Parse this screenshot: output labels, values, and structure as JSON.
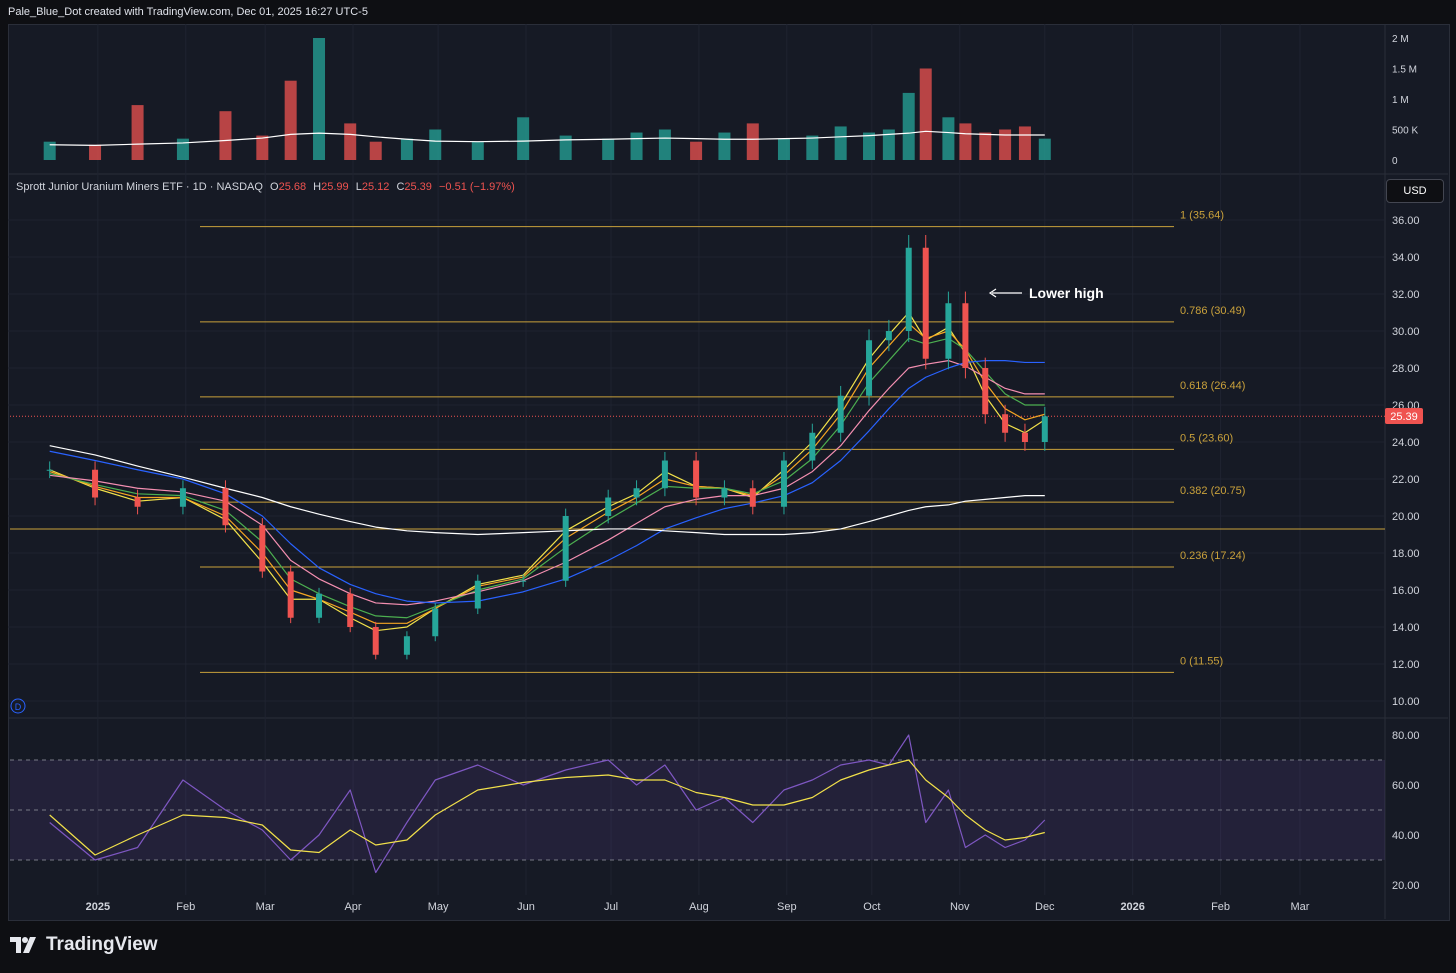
{
  "header": {
    "attribution": "Pale_Blue_Dot created with TradingView.com, Dec 01, 2025 16:27 UTC-5"
  },
  "legend": {
    "name": "Sprott Junior Uranium Miners ETF · 1D · NASDAQ",
    "o_label": "O",
    "o_value": "25.68",
    "h_label": "H",
    "h_value": "25.99",
    "l_label": "L",
    "l_value": "25.12",
    "c_label": "C",
    "c_value": "25.39",
    "change": "−0.51 (−1.97%)"
  },
  "currency_button": "USD",
  "price_badge": "25.39",
  "d_marker": "D",
  "annotation": "Lower high",
  "footer": {
    "brand": "TradingView"
  },
  "colors": {
    "up": "#26a69a",
    "down": "#ef5350",
    "fib": "#c9a13b",
    "ema_yellow": "#f2e14a",
    "ema_orange": "#f5a623",
    "ema_green": "#4caf50",
    "ema_pink": "#f48fb1",
    "ema_blue": "#2962ff",
    "sma_white": "#ffffff",
    "rsi": "#7e57c2"
  },
  "chart_data": [
    {
      "type": "line",
      "panel": "price",
      "title": "Sprott Junior Uranium Miners ETF · 1D · NASDAQ",
      "ylim": [
        10,
        37
      ],
      "y_ticks": [
        "36.00",
        "34.00",
        "32.00",
        "30.00",
        "28.00",
        "26.00",
        "24.00",
        "22.00",
        "20.00",
        "18.00",
        "16.00",
        "14.00",
        "12.00",
        "10.00"
      ],
      "x_ticks": [
        "2025",
        "Feb",
        "Mar",
        "Apr",
        "May",
        "Jun",
        "Jul",
        "Aug",
        "Sep",
        "Oct",
        "Nov",
        "Dec",
        "2026",
        "Feb",
        "Mar"
      ],
      "ohlc_last": {
        "open": 25.68,
        "high": 25.99,
        "low": 25.12,
        "close": 25.39,
        "change": -0.51,
        "change_pct": -1.97
      },
      "close_series": {
        "x": [
          "2024-12-15",
          "2024-12-31",
          "2025-01-15",
          "2025-01-31",
          "2025-02-15",
          "2025-02-28",
          "2025-03-10",
          "2025-03-20",
          "2025-03-31",
          "2025-04-09",
          "2025-04-20",
          "2025-04-30",
          "2025-05-15",
          "2025-05-31",
          "2025-06-15",
          "2025-06-30",
          "2025-07-10",
          "2025-07-20",
          "2025-07-31",
          "2025-08-10",
          "2025-08-20",
          "2025-08-31",
          "2025-09-10",
          "2025-09-20",
          "2025-09-30",
          "2025-10-07",
          "2025-10-14",
          "2025-10-20",
          "2025-10-28",
          "2025-11-03",
          "2025-11-10",
          "2025-11-17",
          "2025-11-24",
          "2025-12-01"
        ],
        "values": [
          22.5,
          21.0,
          20.5,
          21.5,
          19.5,
          17.0,
          14.5,
          15.8,
          14.0,
          12.5,
          13.5,
          15.0,
          16.5,
          16.5,
          20.0,
          21.0,
          21.5,
          23.0,
          21.0,
          21.5,
          20.5,
          23.0,
          24.5,
          26.5,
          29.5,
          30.0,
          34.5,
          28.5,
          31.5,
          28.0,
          25.5,
          24.5,
          24.0,
          25.39
        ]
      },
      "series": [
        {
          "name": "EMA (yellow)",
          "color": "#f2e14a",
          "values": [
            22.5,
            21.5,
            20.8,
            21.0,
            19.8,
            17.5,
            15.5,
            15.5,
            14.5,
            13.8,
            14.0,
            15.0,
            16.3,
            16.8,
            19.2,
            20.5,
            21.2,
            22.4,
            21.6,
            21.5,
            21.0,
            22.5,
            24.0,
            26.0,
            28.5,
            29.8,
            31.0,
            29.5,
            30.2,
            28.8,
            26.5,
            25.0,
            24.5,
            25.2
          ]
        },
        {
          "name": "EMA (orange)",
          "color": "#f5a623",
          "values": [
            22.4,
            21.6,
            21.0,
            21.0,
            20.0,
            18.0,
            16.0,
            15.5,
            14.8,
            14.2,
            14.2,
            15.0,
            16.2,
            16.7,
            18.8,
            20.2,
            21.0,
            22.0,
            21.6,
            21.5,
            21.1,
            22.2,
            23.6,
            25.5,
            28.0,
            29.2,
            30.4,
            29.6,
            30.0,
            29.0,
            27.2,
            25.8,
            25.2,
            25.5
          ]
        },
        {
          "name": "EMA (green)",
          "color": "#4caf50",
          "values": [
            22.3,
            21.7,
            21.2,
            21.1,
            20.3,
            18.6,
            16.6,
            15.8,
            15.1,
            14.6,
            14.5,
            15.1,
            16.0,
            16.6,
            18.3,
            19.8,
            20.7,
            21.6,
            21.5,
            21.5,
            21.2,
            21.9,
            23.1,
            24.9,
            27.2,
            28.4,
            29.6,
            29.3,
            29.6,
            29.0,
            27.8,
            26.6,
            26.0,
            26.0
          ]
        },
        {
          "name": "EMA (pink)",
          "color": "#f48fb1",
          "values": [
            22.2,
            21.9,
            21.5,
            21.3,
            20.8,
            19.5,
            17.6,
            16.6,
            15.8,
            15.3,
            15.2,
            15.4,
            15.9,
            16.5,
            17.5,
            18.7,
            19.6,
            20.5,
            20.9,
            21.1,
            21.1,
            21.5,
            22.4,
            23.8,
            25.7,
            26.9,
            28.0,
            28.2,
            28.4,
            28.1,
            27.5,
            26.9,
            26.6,
            26.6
          ]
        },
        {
          "name": "EMA (blue)",
          "color": "#2962ff",
          "values": [
            23.5,
            23.0,
            22.5,
            22.0,
            21.2,
            20.0,
            18.5,
            17.2,
            16.3,
            15.8,
            15.4,
            15.3,
            15.4,
            15.9,
            16.6,
            17.6,
            18.4,
            19.3,
            19.9,
            20.4,
            20.7,
            21.1,
            21.8,
            23.0,
            24.6,
            25.8,
            26.9,
            27.5,
            28.0,
            28.3,
            28.4,
            28.4,
            28.3,
            28.3
          ]
        },
        {
          "name": "SMA (white)",
          "color": "#ffffff",
          "values": [
            23.8,
            23.3,
            22.7,
            22.1,
            21.5,
            21.0,
            20.5,
            20.1,
            19.7,
            19.4,
            19.2,
            19.1,
            19.0,
            19.1,
            19.2,
            19.3,
            19.3,
            19.2,
            19.1,
            19.0,
            19.0,
            19.0,
            19.1,
            19.3,
            19.7,
            20.0,
            20.3,
            20.5,
            20.6,
            20.8,
            20.9,
            21.0,
            21.1,
            21.1
          ]
        }
      ],
      "fibonacci": [
        {
          "label": "1 (35.64)",
          "value": 35.64
        },
        {
          "label": "0.786 (30.49)",
          "value": 30.49
        },
        {
          "label": "0.618 (26.44)",
          "value": 26.44
        },
        {
          "label": "0.5 (23.60)",
          "value": 23.6
        },
        {
          "label": "0.382 (20.75)",
          "value": 20.75
        },
        {
          "label": "0.236 (17.24)",
          "value": 17.24
        },
        {
          "label": "0 (11.55)",
          "value": 11.55
        }
      ],
      "horizontal_line": 19.3,
      "annotations": [
        {
          "text": "Lower high",
          "x": "2025-10-31",
          "y": 32.0
        }
      ]
    },
    {
      "type": "bar",
      "panel": "volume",
      "y_ticks": [
        "2 M",
        "1.5 M",
        "1 M",
        "500 K",
        "0"
      ],
      "ylim": [
        0,
        2100000
      ],
      "x": [
        "2024-12-15",
        "2024-12-31",
        "2025-01-15",
        "2025-01-31",
        "2025-02-15",
        "2025-02-28",
        "2025-03-10",
        "2025-03-20",
        "2025-03-31",
        "2025-04-09",
        "2025-04-20",
        "2025-04-30",
        "2025-05-15",
        "2025-05-31",
        "2025-06-15",
        "2025-06-30",
        "2025-07-10",
        "2025-07-20",
        "2025-07-31",
        "2025-08-10",
        "2025-08-20",
        "2025-08-31",
        "2025-09-10",
        "2025-09-20",
        "2025-09-30",
        "2025-10-07",
        "2025-10-14",
        "2025-10-20",
        "2025-10-28",
        "2025-11-03",
        "2025-11-10",
        "2025-11-17",
        "2025-11-24",
        "2025-12-01"
      ],
      "values": [
        300000,
        250000,
        900000,
        350000,
        800000,
        400000,
        1300000,
        2000000,
        600000,
        300000,
        350000,
        500000,
        300000,
        700000,
        400000,
        350000,
        450000,
        500000,
        300000,
        450000,
        600000,
        350000,
        400000,
        550000,
        450000,
        500000,
        1100000,
        1500000,
        700000,
        600000,
        450000,
        500000,
        550000,
        350000
      ],
      "average_line": [
        250000,
        240000,
        260000,
        280000,
        320000,
        360000,
        420000,
        440000,
        420000,
        380000,
        340000,
        310000,
        300000,
        310000,
        330000,
        340000,
        350000,
        360000,
        350000,
        340000,
        340000,
        350000,
        360000,
        380000,
        400000,
        420000,
        440000,
        470000,
        450000,
        430000,
        420000,
        410000,
        410000,
        410000
      ]
    },
    {
      "type": "line",
      "panel": "rsi",
      "y_ticks": [
        "80.00",
        "60.00",
        "40.00",
        "20.00"
      ],
      "ylim": [
        18,
        82
      ],
      "bands": [
        70,
        50,
        30
      ],
      "x": [
        "2024-12-15",
        "2024-12-31",
        "2025-01-15",
        "2025-01-31",
        "2025-02-15",
        "2025-02-28",
        "2025-03-10",
        "2025-03-20",
        "2025-03-31",
        "2025-04-09",
        "2025-04-20",
        "2025-04-30",
        "2025-05-15",
        "2025-05-31",
        "2025-06-15",
        "2025-06-30",
        "2025-07-10",
        "2025-07-20",
        "2025-07-31",
        "2025-08-10",
        "2025-08-20",
        "2025-08-31",
        "2025-09-10",
        "2025-09-20",
        "2025-09-30",
        "2025-10-07",
        "2025-10-14",
        "2025-10-20",
        "2025-10-28",
        "2025-11-03",
        "2025-11-10",
        "2025-11-17",
        "2025-11-24",
        "2025-12-01"
      ],
      "series": [
        {
          "name": "RSI",
          "color": "#7e57c2",
          "values": [
            45,
            30,
            35,
            62,
            50,
            42,
            30,
            40,
            58,
            25,
            45,
            62,
            68,
            60,
            66,
            70,
            60,
            68,
            50,
            55,
            45,
            58,
            62,
            68,
            70,
            68,
            80,
            45,
            58,
            35,
            40,
            35,
            38,
            46
          ]
        },
        {
          "name": "RSI MA",
          "color": "#f2e14a",
          "values": [
            48,
            32,
            40,
            48,
            47,
            44,
            34,
            33,
            42,
            36,
            38,
            48,
            58,
            61,
            63,
            64,
            62,
            62,
            57,
            55,
            52,
            52,
            55,
            62,
            66,
            68,
            70,
            62,
            55,
            48,
            42,
            38,
            39,
            41
          ]
        }
      ]
    }
  ]
}
